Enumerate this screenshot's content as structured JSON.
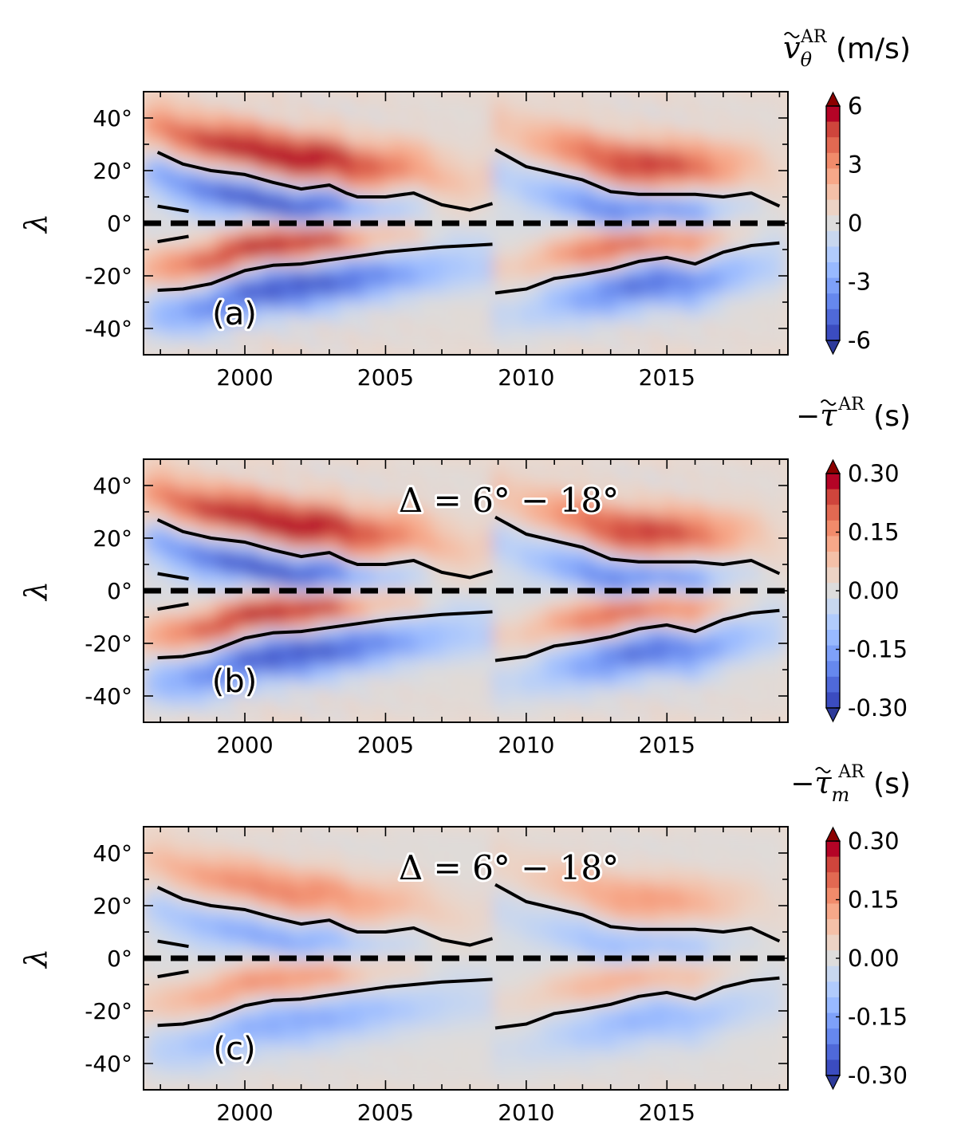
{
  "chart_data": [
    {
      "type": "heatmap",
      "panel_label": "(a)",
      "colorbar_title": {
        "tilde_symbol": "v",
        "subscript": "θ",
        "superscript": "AR",
        "unit": "(m/s)"
      },
      "ylabel": "λ",
      "annotation": "",
      "xlim": [
        1996.4,
        2019.3
      ],
      "ylim": [
        -50,
        50
      ],
      "xticks": [
        "2000",
        "2005",
        "2010",
        "2015"
      ],
      "yticks": [
        "40°",
        "20°",
        "0°",
        "-20°",
        "-40°"
      ],
      "colorbar_ticks": [
        "6",
        "3",
        "0",
        "-3",
        "-6"
      ],
      "vmin": -6,
      "vmax": 6,
      "intensity": 1.0
    },
    {
      "type": "heatmap",
      "panel_label": "(b)",
      "colorbar_title": {
        "prefix": "−",
        "tilde_symbol": "τ",
        "subscript": "",
        "superscript": "AR",
        "unit": "(s)"
      },
      "ylabel": "λ",
      "annotation": "Δ = 6° − 18°",
      "xlim": [
        1996.4,
        2019.3
      ],
      "ylim": [
        -50,
        50
      ],
      "xticks": [
        "2000",
        "2005",
        "2010",
        "2015"
      ],
      "yticks": [
        "40°",
        "20°",
        "0°",
        "-20°",
        "-40°"
      ],
      "colorbar_ticks": [
        "0.30",
        "0.15",
        "0.00",
        "-0.15",
        "-0.30"
      ],
      "vmin": -0.3,
      "vmax": 0.3,
      "intensity": 1.0
    },
    {
      "type": "heatmap",
      "panel_label": "(c)",
      "colorbar_title": {
        "prefix": "−",
        "tilde_symbol": "τ",
        "subscript": "m",
        "superscript": "AR",
        "unit": "(s)"
      },
      "ylabel": "λ",
      "annotation": "Δ = 6° − 18°",
      "xlim": [
        1996.4,
        2019.3
      ],
      "ylim": [
        -50,
        50
      ],
      "xticks": [
        "2000",
        "2005",
        "2010",
        "2015"
      ],
      "yticks": [
        "40°",
        "20°",
        "0°",
        "-20°",
        "-40°"
      ],
      "colorbar_ticks": [
        "0.30",
        "0.15",
        "0.00",
        "-0.15",
        "-0.30"
      ],
      "vmin": -0.3,
      "vmax": 0.3,
      "intensity": 0.55
    }
  ],
  "overlay_lines": {
    "north_cycle23": [
      [
        1996.9,
        27
      ],
      [
        1997.8,
        22.5
      ],
      [
        1998.8,
        20
      ],
      [
        2000.0,
        18.5
      ],
      [
        2001.0,
        15.5
      ],
      [
        2002.0,
        13
      ],
      [
        2003.0,
        14.5
      ],
      [
        2003.6,
        11.5
      ],
      [
        2004.0,
        10
      ],
      [
        2005.0,
        10
      ],
      [
        2006.0,
        11.5
      ],
      [
        2007.0,
        7
      ],
      [
        2008.0,
        5
      ],
      [
        2008.8,
        7.5
      ]
    ],
    "south_cycle23": [
      [
        1996.9,
        -25.5
      ],
      [
        1997.8,
        -25
      ],
      [
        1998.8,
        -23
      ],
      [
        2000.0,
        -18
      ],
      [
        2001.0,
        -16
      ],
      [
        2002.0,
        -15.5
      ],
      [
        2003.0,
        -14
      ],
      [
        2004.0,
        -12.5
      ],
      [
        2005.0,
        -11
      ],
      [
        2006.0,
        -10
      ],
      [
        2007.0,
        -9
      ],
      [
        2008.0,
        -8.5
      ],
      [
        2008.8,
        -8
      ]
    ],
    "north_short": [
      [
        1996.9,
        6.5
      ],
      [
        1998.0,
        4.5
      ]
    ],
    "south_short": [
      [
        1996.9,
        -7
      ],
      [
        1998.0,
        -5
      ]
    ],
    "north_cycle24": [
      [
        2008.9,
        28
      ],
      [
        2010.0,
        21.5
      ],
      [
        2011.0,
        19
      ],
      [
        2012.0,
        16.5
      ],
      [
        2013.0,
        12
      ],
      [
        2014.0,
        11
      ],
      [
        2015.0,
        11
      ],
      [
        2016.0,
        11
      ],
      [
        2017.0,
        10
      ],
      [
        2018.0,
        11.5
      ],
      [
        2019.0,
        6.5
      ]
    ],
    "south_cycle24": [
      [
        2008.9,
        -26.5
      ],
      [
        2010.0,
        -25
      ],
      [
        2011.0,
        -21
      ],
      [
        2012.0,
        -19.5
      ],
      [
        2013.0,
        -17.5
      ],
      [
        2014.0,
        -14.5
      ],
      [
        2015.0,
        -13
      ],
      [
        2016.0,
        -15.5
      ],
      [
        2017.0,
        -11
      ],
      [
        2018.0,
        -8.5
      ],
      [
        2019.0,
        -7.5
      ]
    ],
    "equator": 0
  },
  "colors": {
    "colormap": [
      "#3b4cc0",
      "#4f69d9",
      "#6688ee",
      "#7ea1f9",
      "#98b9ff",
      "#b1cbfc",
      "#c8d7ef",
      "#dddcdc",
      "#ecd3c5",
      "#f4c0a8",
      "#f7a889",
      "#f18b6b",
      "#e26952",
      "#cf453c",
      "#b40426"
    ],
    "neutral_negative": "#d6dde9",
    "neutral_positive": "#efd9cc"
  }
}
